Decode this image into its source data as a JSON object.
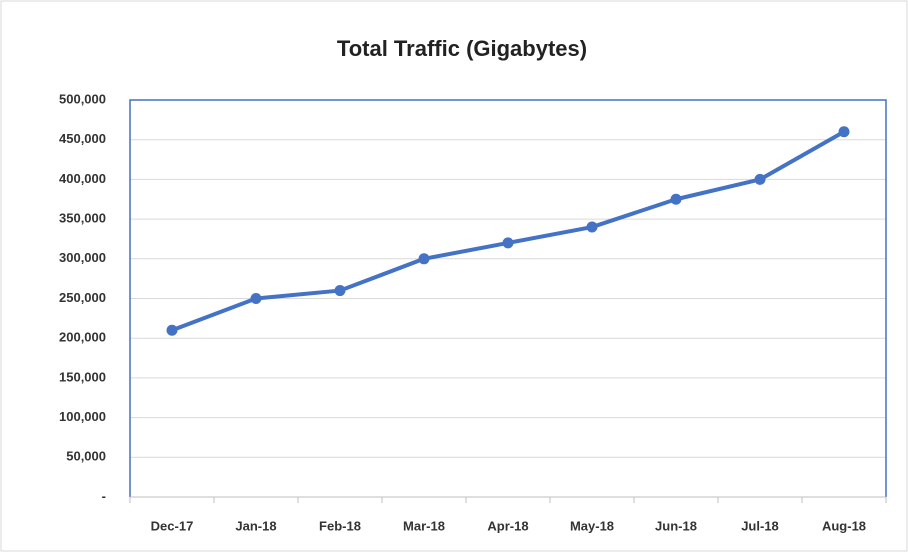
{
  "chart_data": {
    "type": "line",
    "title": "Total Traffic (Gigabytes)",
    "categories": [
      "Dec-17",
      "Jan-18",
      "Feb-18",
      "Mar-18",
      "Apr-18",
      "May-18",
      "Jun-18",
      "Jul-18",
      "Aug-18"
    ],
    "series": [
      {
        "name": "Total Traffic",
        "color": "#4472c4",
        "values": [
          210000,
          250000,
          260000,
          300000,
          320000,
          340000,
          375000,
          400000,
          460000
        ]
      }
    ],
    "ylim": [
      0,
      500000
    ],
    "yticks": [
      {
        "value": 0,
        "label": "-"
      },
      {
        "value": 50000,
        "label": "50,000"
      },
      {
        "value": 100000,
        "label": "100,000"
      },
      {
        "value": 150000,
        "label": "150,000"
      },
      {
        "value": 200000,
        "label": "200,000"
      },
      {
        "value": 250000,
        "label": "250,000"
      },
      {
        "value": 300000,
        "label": "300,000"
      },
      {
        "value": 350000,
        "label": "350,000"
      },
      {
        "value": 400000,
        "label": "400,000"
      },
      {
        "value": 450000,
        "label": "450,000"
      },
      {
        "value": 500000,
        "label": "500,000"
      }
    ],
    "grid": true
  }
}
